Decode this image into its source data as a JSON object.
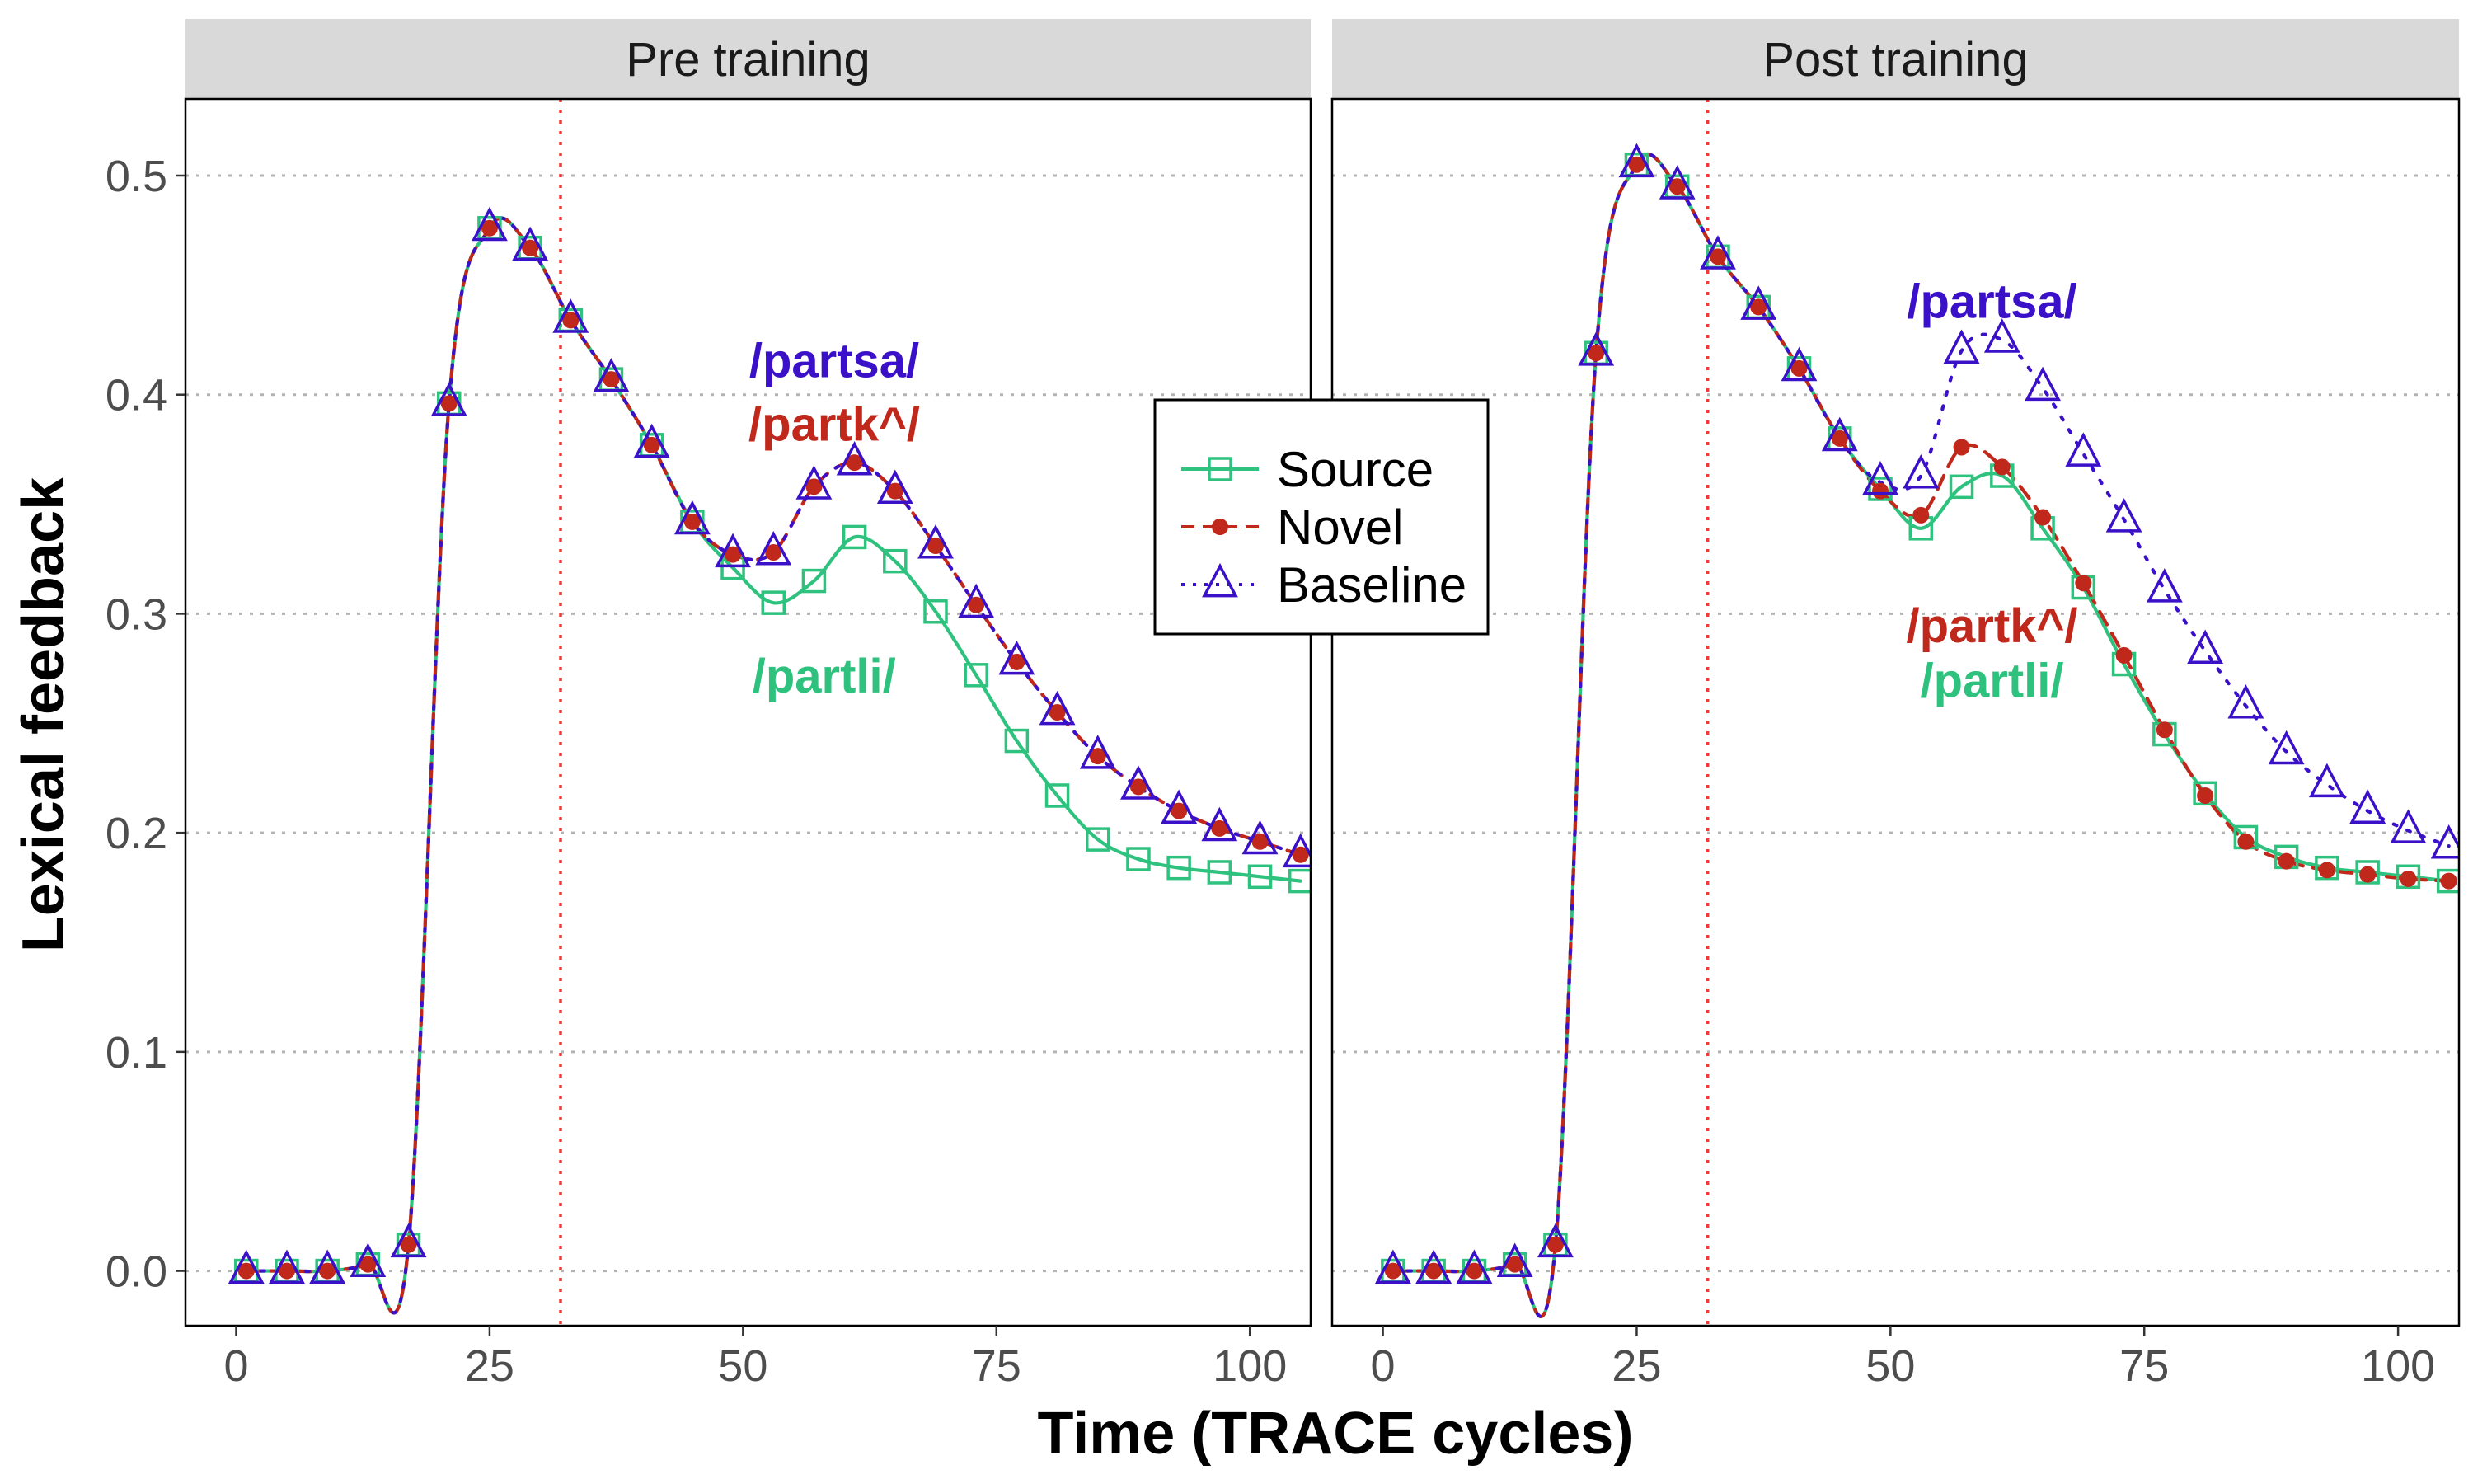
{
  "chart_data": {
    "type": "line",
    "xlabel": "Time (TRACE cycles)",
    "ylabel": "Lexical feedback",
    "xlim": [
      -5,
      106
    ],
    "ylim": [
      -0.025,
      0.535
    ],
    "x_ticks": [
      0,
      25,
      50,
      75,
      100
    ],
    "y_ticks": [
      0.0,
      0.1,
      0.2,
      0.3,
      0.4,
      0.5
    ],
    "y_tick_labels": [
      "0.0",
      "0.1",
      "0.2",
      "0.3",
      "0.4",
      "0.5"
    ],
    "grid": "horizontal dotted",
    "vline_x": 32,
    "legend": {
      "position": "center",
      "entries": [
        {
          "name": "Source",
          "marker": "open-square",
          "line": "solid",
          "color": "#2ec27e"
        },
        {
          "name": "Novel",
          "marker": "filled-circle",
          "line": "dashed",
          "color": "#c0281c"
        },
        {
          "name": "Baseline",
          "marker": "open-triangle",
          "line": "dotted",
          "color": "#3a10c9"
        }
      ]
    },
    "panels": [
      {
        "title": "Pre training",
        "x": [
          1,
          5,
          9,
          13,
          17,
          21,
          25,
          29,
          33,
          37,
          41,
          45,
          49,
          53,
          57,
          61,
          65,
          69,
          73,
          77,
          81,
          85,
          89,
          93,
          97,
          101,
          105
        ],
        "series": [
          {
            "name": "Source",
            "values": [
              0.0,
              0.0,
              0.0,
              0.003,
              0.012,
              0.396,
              0.476,
              0.467,
              0.434,
              0.407,
              0.377,
              0.342,
              0.321,
              0.305,
              0.315,
              0.335,
              0.324,
              0.301,
              0.272,
              0.242,
              0.217,
              0.197,
              0.188,
              0.184,
              0.182,
              0.18,
              0.178
            ]
          },
          {
            "name": "Novel",
            "values": [
              0.0,
              0.0,
              0.0,
              0.003,
              0.012,
              0.396,
              0.476,
              0.467,
              0.434,
              0.407,
              0.377,
              0.342,
              0.327,
              0.328,
              0.358,
              0.369,
              0.356,
              0.331,
              0.304,
              0.278,
              0.255,
              0.235,
              0.221,
              0.21,
              0.202,
              0.196,
              0.19
            ]
          },
          {
            "name": "Baseline",
            "values": [
              0.0,
              0.0,
              0.0,
              0.003,
              0.012,
              0.396,
              0.476,
              0.467,
              0.434,
              0.407,
              0.377,
              0.342,
              0.327,
              0.328,
              0.358,
              0.369,
              0.356,
              0.331,
              0.304,
              0.278,
              0.255,
              0.235,
              0.221,
              0.21,
              0.202,
              0.196,
              0.19
            ]
          }
        ],
        "annotations": [
          {
            "text": "/partsa/",
            "x": 59,
            "y": 0.408,
            "color": "#3a10c9"
          },
          {
            "text": "/partk^/",
            "x": 59,
            "y": 0.379,
            "color": "#c0281c"
          },
          {
            "text": "/partli/",
            "x": 58,
            "y": 0.264,
            "color": "#2ec27e"
          }
        ]
      },
      {
        "title": "Post training",
        "x": [
          1,
          5,
          9,
          13,
          17,
          21,
          25,
          29,
          33,
          37,
          41,
          45,
          49,
          53,
          57,
          61,
          65,
          69,
          73,
          77,
          81,
          85,
          89,
          93,
          97,
          101,
          105
        ],
        "series": [
          {
            "name": "Source",
            "values": [
              0.0,
              0.0,
              0.0,
              0.003,
              0.012,
              0.419,
              0.505,
              0.495,
              0.463,
              0.44,
              0.412,
              0.38,
              0.357,
              0.339,
              0.358,
              0.363,
              0.339,
              0.312,
              0.277,
              0.245,
              0.218,
              0.198,
              0.189,
              0.184,
              0.182,
              0.18,
              0.178
            ]
          },
          {
            "name": "Novel",
            "values": [
              0.0,
              0.0,
              0.0,
              0.003,
              0.012,
              0.419,
              0.505,
              0.495,
              0.463,
              0.44,
              0.412,
              0.38,
              0.356,
              0.345,
              0.376,
              0.367,
              0.344,
              0.314,
              0.281,
              0.247,
              0.217,
              0.196,
              0.187,
              0.183,
              0.181,
              0.179,
              0.178
            ]
          },
          {
            "name": "Baseline",
            "values": [
              0.0,
              0.0,
              0.0,
              0.003,
              0.012,
              0.419,
              0.505,
              0.495,
              0.463,
              0.44,
              0.412,
              0.38,
              0.36,
              0.363,
              0.42,
              0.425,
              0.403,
              0.373,
              0.343,
              0.311,
              0.283,
              0.258,
              0.237,
              0.222,
              0.21,
              0.201,
              0.194
            ]
          }
        ],
        "annotations": [
          {
            "text": "/partsa/",
            "x": 60,
            "y": 0.435,
            "color": "#3a10c9"
          },
          {
            "text": "/partk^/",
            "x": 60,
            "y": 0.287,
            "color": "#c0281c"
          },
          {
            "text": "/partli/",
            "x": 60,
            "y": 0.262,
            "color": "#2ec27e"
          }
        ]
      }
    ]
  }
}
